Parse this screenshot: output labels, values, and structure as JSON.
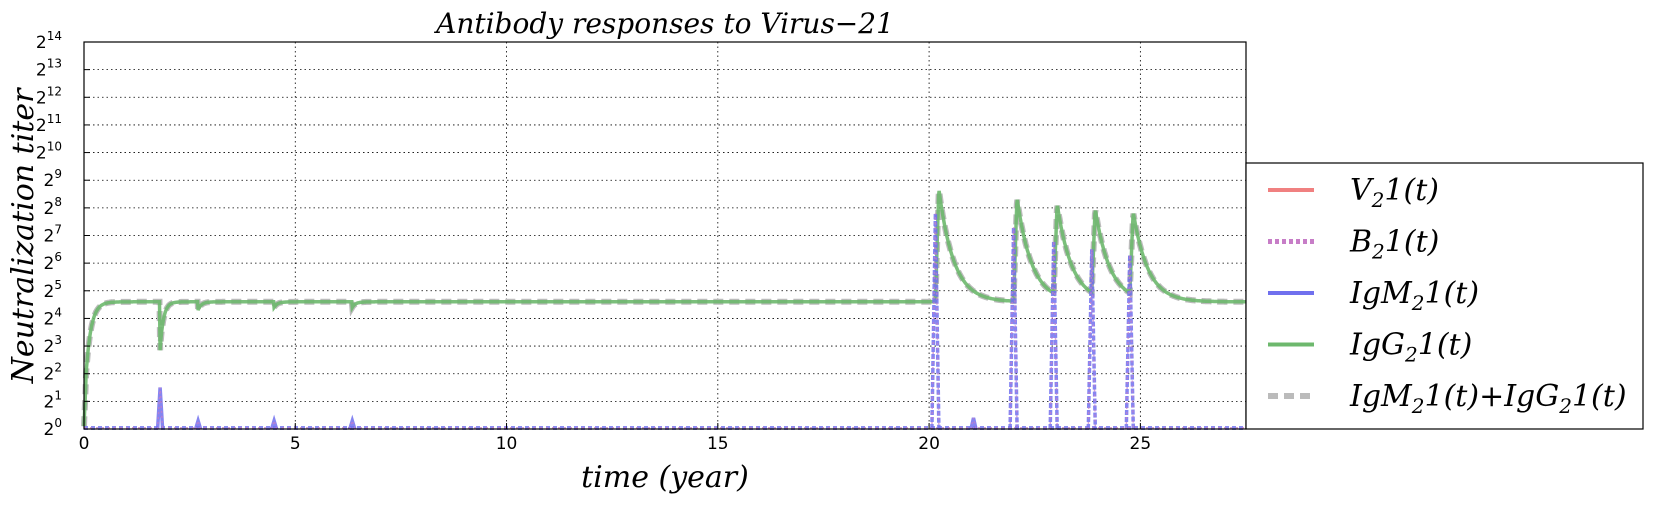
{
  "chart_data": {
    "type": "line",
    "title": "Antibody responses to Virus−21",
    "xlabel": "time (year)",
    "ylabel": "Neutralization  titer",
    "xlim": [
      0,
      27.5
    ],
    "ylim_log2": [
      0,
      14
    ],
    "y_scale": "log2",
    "x_ticks": [
      0,
      5,
      10,
      15,
      20,
      25
    ],
    "x_tick_labels": [
      "0",
      "5",
      "10",
      "15",
      "20",
      "25"
    ],
    "y_tick_exponents": [
      "0",
      "1",
      "2",
      "3",
      "4",
      "5",
      "6",
      "7",
      "8",
      "9",
      "10",
      "11",
      "12",
      "13",
      "14"
    ],
    "y_tick_base": "2",
    "grid": true,
    "legend_position": "right, outside plot",
    "colors": {
      "V21": "#f08080",
      "B21": "#c77dc7",
      "IgM21": "#7070ee",
      "IgG21": "#6db86d",
      "Sum": "#bbbbbb"
    },
    "legend": [
      {
        "key": "V21",
        "main": "V",
        "sub": "2",
        "rest": "1(t)",
        "style": "solid"
      },
      {
        "key": "B21",
        "main": "B",
        "sub": "2",
        "rest": "1(t)",
        "style": "dotted"
      },
      {
        "key": "IgM21",
        "main": "IgM",
        "sub": "2",
        "rest": "1(t)",
        "style": "solid"
      },
      {
        "key": "IgG21",
        "main": "IgG",
        "sub": "2",
        "rest": "1(t)",
        "style": "solid"
      },
      {
        "key": "Sum",
        "main": "IgM",
        "sub": "2",
        "rest": "1(t)+IgG",
        "sub2": "2",
        "rest2": "1(t)",
        "style": "dashed"
      }
    ],
    "igg_baseline_log2": 4.6,
    "igg_events": [
      {
        "t": 1.8,
        "dip_log2": 2.85,
        "peak_log2": null
      },
      {
        "t": 2.7,
        "dip_log2": 4.3,
        "peak_log2": null
      },
      {
        "t": 4.5,
        "dip_log2": 4.4,
        "peak_log2": null
      },
      {
        "t": 6.35,
        "dip_log2": 4.4,
        "peak_log2": null
      },
      {
        "t": 20.15,
        "dip_log2": null,
        "peak_log2": 8.7
      },
      {
        "t": 22.0,
        "dip_log2": null,
        "peak_log2": 8.35
      },
      {
        "t": 22.95,
        "dip_log2": null,
        "peak_log2": 7.9
      },
      {
        "t": 23.85,
        "dip_log2": null,
        "peak_log2": 7.7
      },
      {
        "t": 24.75,
        "dip_log2": null,
        "peak_log2": 7.6
      }
    ],
    "igm_spikes": [
      {
        "t": 1.8,
        "peak_log2": 1.5
      },
      {
        "t": 2.7,
        "peak_log2": 0.3
      },
      {
        "t": 4.5,
        "peak_log2": 0.3
      },
      {
        "t": 6.35,
        "peak_log2": 0.3
      },
      {
        "t": 20.15,
        "peak_log2": 7.8
      },
      {
        "t": 21.05,
        "peak_log2": 0.4
      },
      {
        "t": 22.0,
        "peak_log2": 7.3
      },
      {
        "t": 22.95,
        "peak_log2": 6.8
      },
      {
        "t": 23.85,
        "peak_log2": 6.5
      },
      {
        "t": 24.75,
        "peak_log2": 6.3
      }
    ]
  }
}
